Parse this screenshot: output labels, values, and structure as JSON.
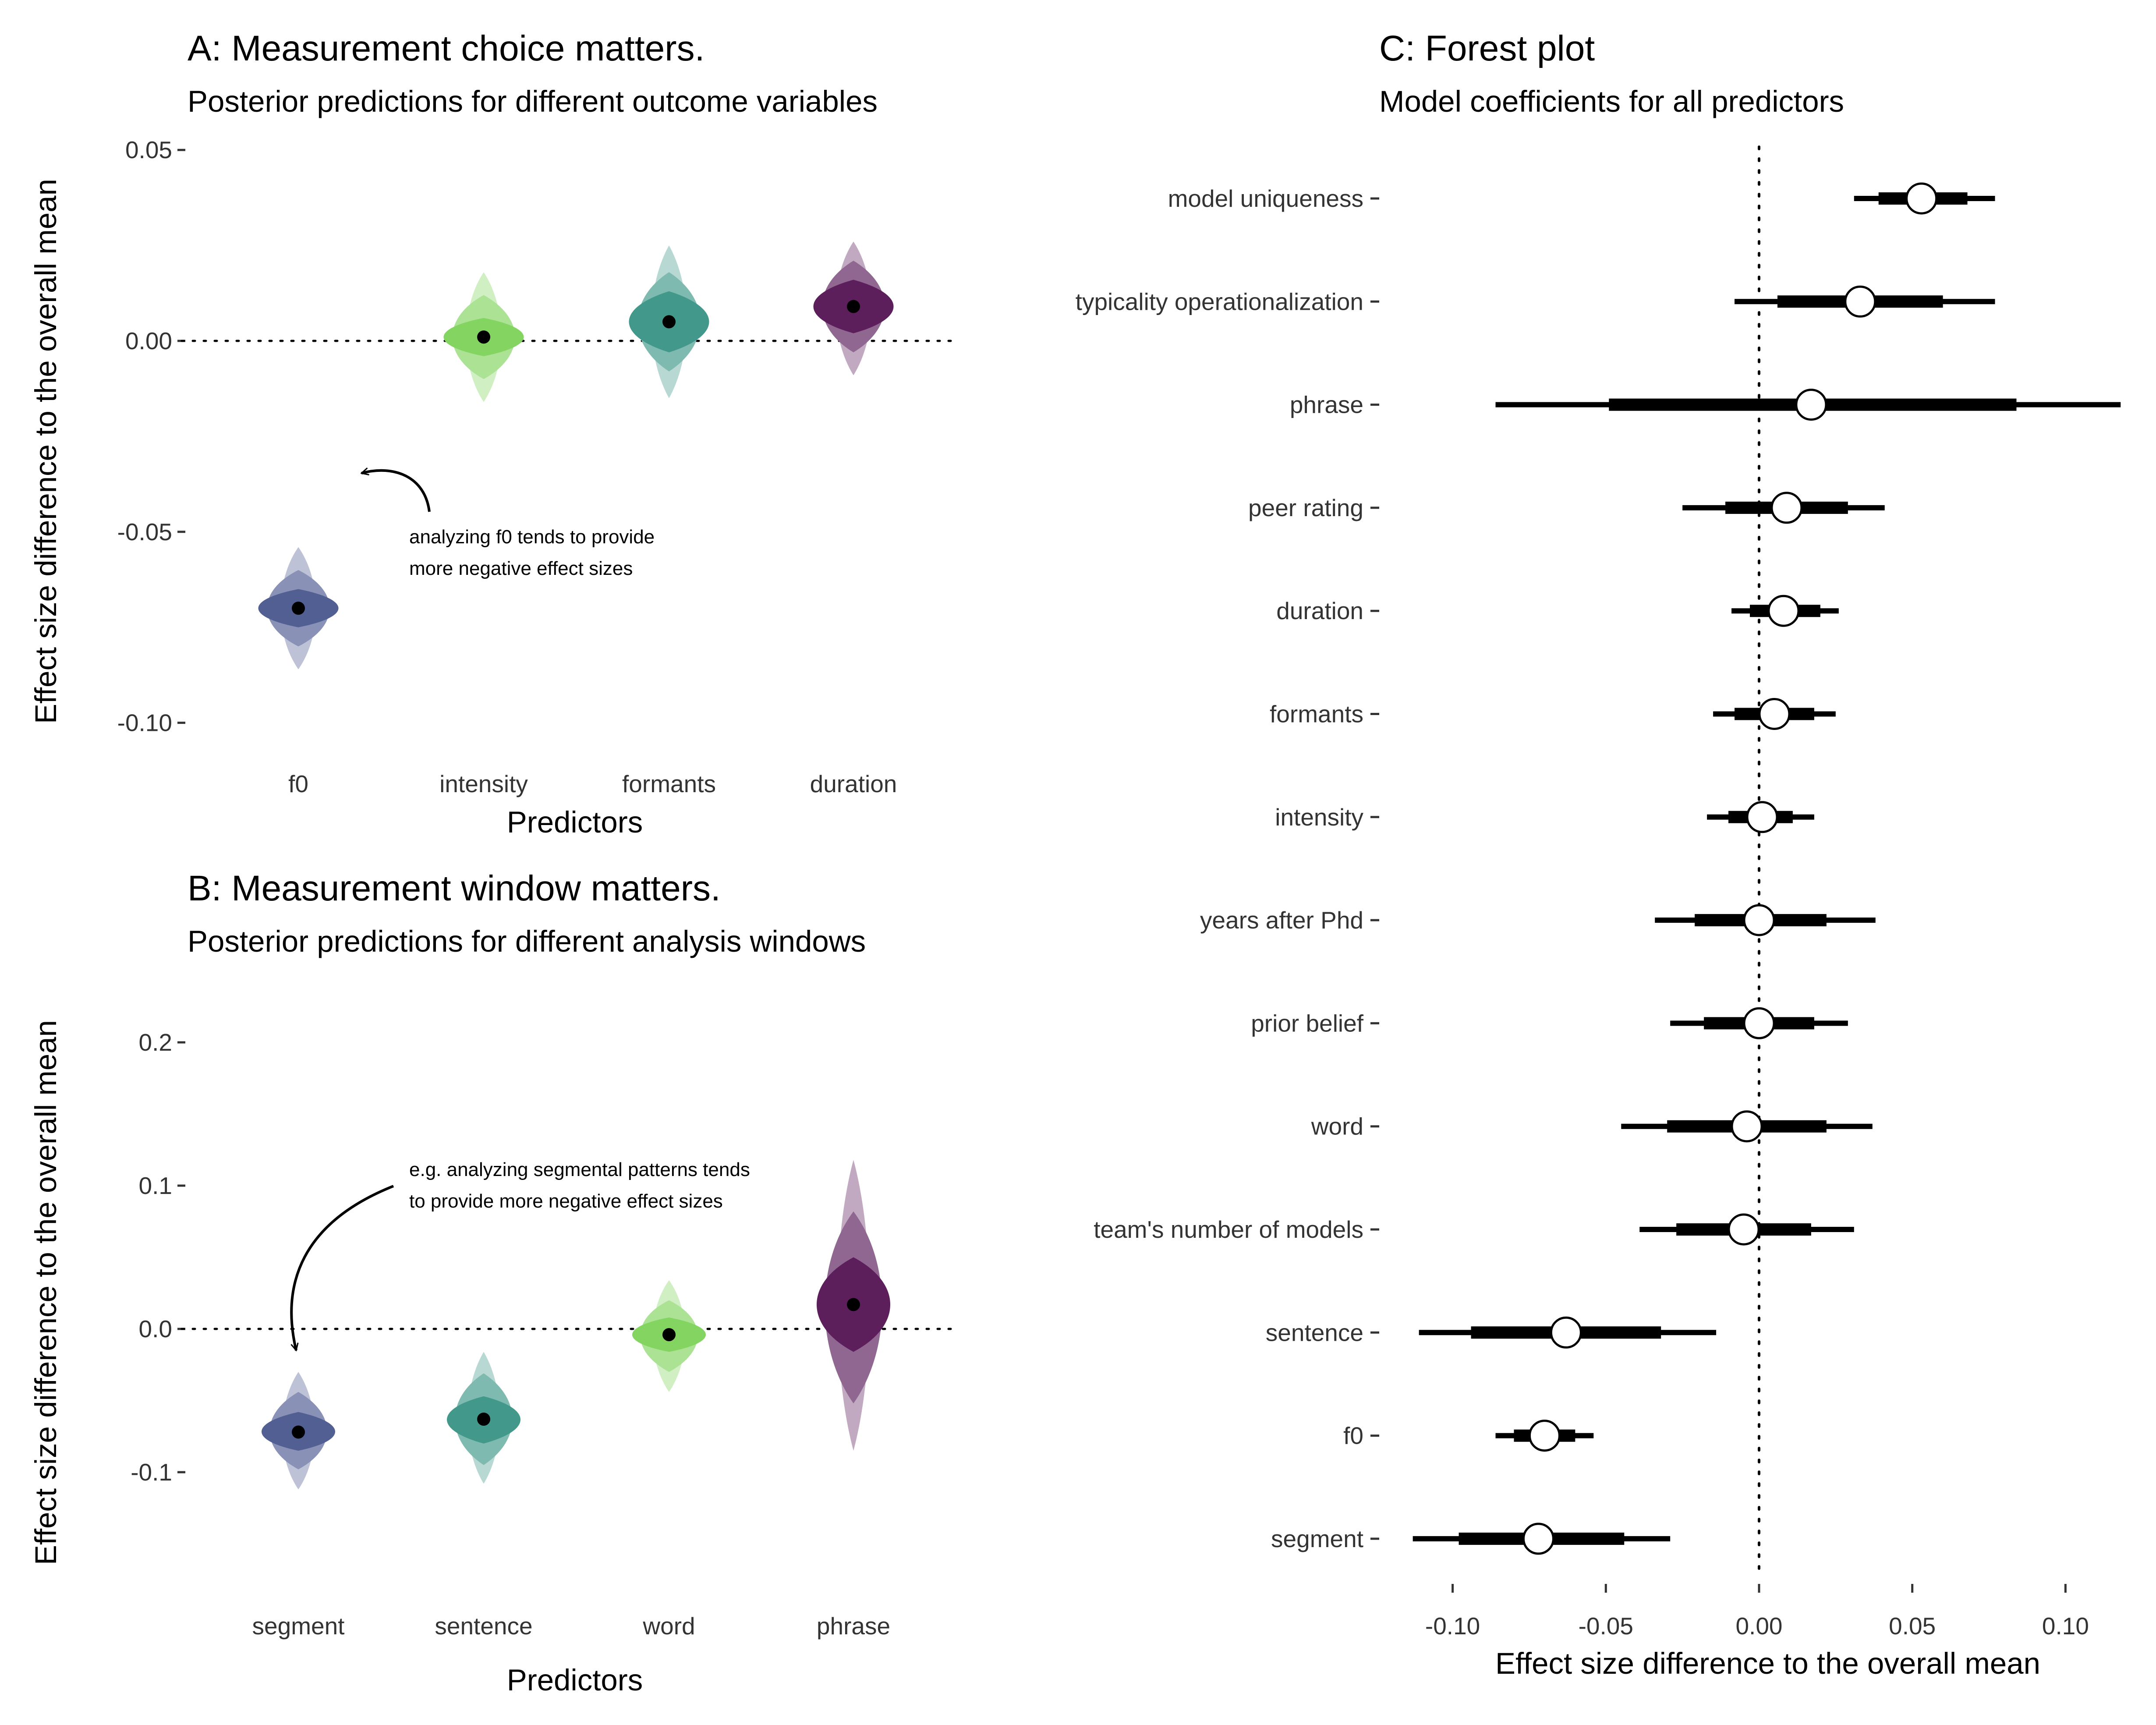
{
  "panel_a": {
    "title": "A: Measurement choice matters.",
    "subtitle": "Posterior predictions for different outcome variables",
    "xlabel": "Predictors",
    "ylabel": "Effect size difference to the overall mean",
    "annotation": [
      "analyzing f0 tends to provide",
      "more negative effect sizes"
    ]
  },
  "panel_b": {
    "title": "B: Measurement window matters.",
    "subtitle": "Posterior predictions for different analysis windows",
    "xlabel": "Predictors",
    "ylabel": "Effect size difference to the overall mean",
    "annotation": [
      "e.g. analyzing segmental patterns tends",
      "to provide more negative effect sizes"
    ]
  },
  "panel_c": {
    "title": "C: Forest plot",
    "subtitle": "Model coefficients for all predictors",
    "xlabel": "Effect size difference to the overall mean"
  },
  "chart_data": [
    {
      "type": "violin",
      "panel": "A",
      "categories": [
        "f0",
        "intensity",
        "formants",
        "duration"
      ],
      "ylim": [
        -0.1,
        0.05
      ],
      "yticks": [
        0.05,
        0.0,
        -0.05,
        -0.1
      ],
      "ytick_labels": [
        "0.05",
        "0.00",
        "-0.05",
        "-0.10"
      ],
      "reference_line": 0.0,
      "grid": false,
      "series": [
        {
          "category": "f0",
          "mean": -0.07,
          "q50": [
            -0.075,
            -0.065
          ],
          "q80": [
            -0.08,
            -0.06
          ],
          "q95": [
            -0.086,
            -0.054
          ],
          "color": "#525f93"
        },
        {
          "category": "intensity",
          "mean": 0.001,
          "q50": [
            -0.004,
            0.006
          ],
          "q80": [
            -0.01,
            0.012
          ],
          "q95": [
            -0.016,
            0.018
          ],
          "color": "#84d461"
        },
        {
          "category": "formants",
          "mean": 0.005,
          "q50": [
            -0.003,
            0.013
          ],
          "q80": [
            -0.008,
            0.018
          ],
          "q95": [
            -0.015,
            0.025
          ],
          "color": "#42998b"
        },
        {
          "category": "duration",
          "mean": 0.009,
          "q50": [
            0.002,
            0.016
          ],
          "q80": [
            -0.003,
            0.021
          ],
          "q95": [
            -0.009,
            0.026
          ],
          "color": "#5c1f5c"
        }
      ]
    },
    {
      "type": "violin",
      "panel": "B",
      "categories": [
        "segment",
        "sentence",
        "word",
        "phrase"
      ],
      "ylim": [
        -0.15,
        0.22
      ],
      "yticks": [
        0.2,
        0.1,
        0.0,
        -0.1
      ],
      "ytick_labels": [
        "0.2",
        "0.1",
        "0.0",
        "-0.1"
      ],
      "reference_line": 0.0,
      "grid": false,
      "series": [
        {
          "category": "segment",
          "mean": -0.072,
          "q50": [
            -0.085,
            -0.058
          ],
          "q80": [
            -0.098,
            -0.044
          ],
          "q95": [
            -0.112,
            -0.03
          ],
          "color": "#525f93"
        },
        {
          "category": "sentence",
          "mean": -0.063,
          "q50": [
            -0.08,
            -0.047
          ],
          "q80": [
            -0.095,
            -0.031
          ],
          "q95": [
            -0.108,
            -0.016
          ],
          "color": "#42998b"
        },
        {
          "category": "word",
          "mean": -0.004,
          "q50": [
            -0.016,
            0.008
          ],
          "q80": [
            -0.03,
            0.02
          ],
          "q95": [
            -0.044,
            0.034
          ],
          "color": "#84d461"
        },
        {
          "category": "phrase",
          "mean": 0.017,
          "q50": [
            -0.016,
            0.05
          ],
          "q80": [
            -0.052,
            0.082
          ],
          "q95": [
            -0.085,
            0.118
          ],
          "color": "#5c1f5c"
        }
      ]
    },
    {
      "type": "forest",
      "panel": "C",
      "xlim": [
        -0.12,
        0.12
      ],
      "xticks": [
        -0.1,
        -0.05,
        0.0,
        0.05,
        0.1
      ],
      "xtick_labels": [
        "-0.10",
        "-0.05",
        "0.00",
        "0.05",
        "0.10"
      ],
      "reference_line": 0.0,
      "grid": false,
      "rows": [
        {
          "label": "model uniqueness",
          "estimate": 0.053,
          "inner": [
            0.039,
            0.068
          ],
          "outer": [
            0.031,
            0.077
          ]
        },
        {
          "label": "typicality operationalization",
          "estimate": 0.033,
          "inner": [
            0.006,
            0.06
          ],
          "outer": [
            -0.008,
            0.077
          ]
        },
        {
          "label": "phrase",
          "estimate": 0.017,
          "inner": [
            -0.049,
            0.084
          ],
          "outer": [
            -0.086,
            0.118
          ]
        },
        {
          "label": "peer rating",
          "estimate": 0.009,
          "inner": [
            -0.011,
            0.029
          ],
          "outer": [
            -0.025,
            0.041
          ]
        },
        {
          "label": "duration",
          "estimate": 0.008,
          "inner": [
            -0.003,
            0.02
          ],
          "outer": [
            -0.009,
            0.026
          ]
        },
        {
          "label": "formants",
          "estimate": 0.005,
          "inner": [
            -0.008,
            0.018
          ],
          "outer": [
            -0.015,
            0.025
          ]
        },
        {
          "label": "intensity",
          "estimate": 0.001,
          "inner": [
            -0.01,
            0.011
          ],
          "outer": [
            -0.017,
            0.018
          ]
        },
        {
          "label": "years after Phd",
          "estimate": 0.0,
          "inner": [
            -0.021,
            0.022
          ],
          "outer": [
            -0.034,
            0.038
          ]
        },
        {
          "label": "prior belief",
          "estimate": 0.0,
          "inner": [
            -0.018,
            0.018
          ],
          "outer": [
            -0.029,
            0.029
          ]
        },
        {
          "label": "word",
          "estimate": -0.004,
          "inner": [
            -0.03,
            0.022
          ],
          "outer": [
            -0.045,
            0.037
          ]
        },
        {
          "label": "team's number of models",
          "estimate": -0.005,
          "inner": [
            -0.027,
            0.017
          ],
          "outer": [
            -0.039,
            0.031
          ]
        },
        {
          "label": "sentence",
          "estimate": -0.063,
          "inner": [
            -0.094,
            -0.032
          ],
          "outer": [
            -0.111,
            -0.014
          ]
        },
        {
          "label": "f0",
          "estimate": -0.07,
          "inner": [
            -0.08,
            -0.06
          ],
          "outer": [
            -0.086,
            -0.054
          ]
        },
        {
          "label": "segment",
          "estimate": -0.072,
          "inner": [
            -0.098,
            -0.044
          ],
          "outer": [
            -0.113,
            -0.029
          ]
        }
      ]
    }
  ]
}
